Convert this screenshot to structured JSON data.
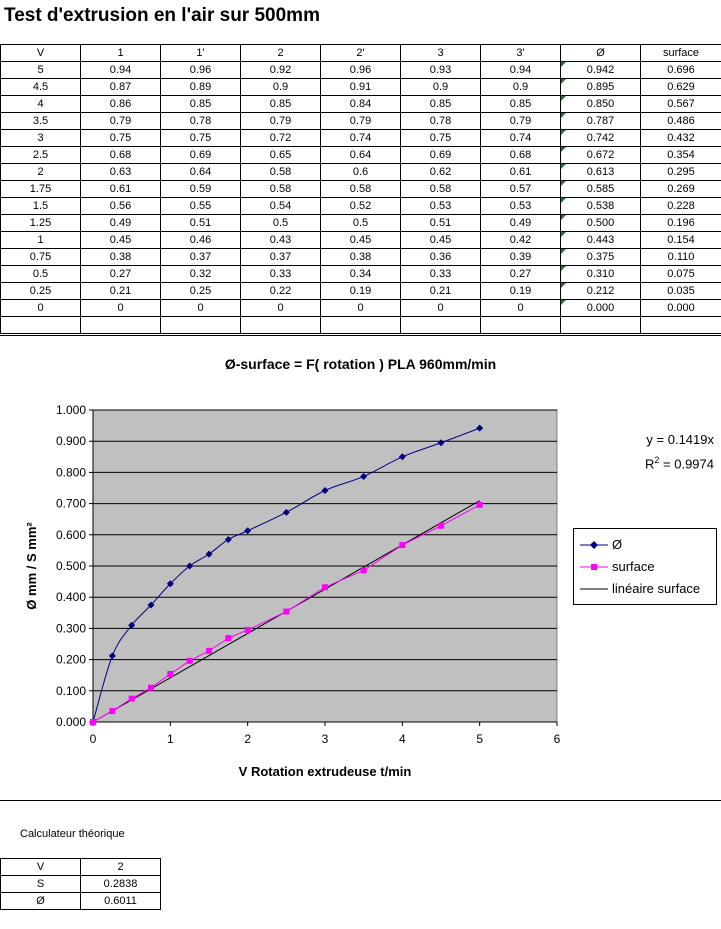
{
  "title": "Test d'extrusion en l'air sur 500mm",
  "table": {
    "headers": [
      "V",
      "1",
      "1'",
      "2",
      "2'",
      "3",
      "3'",
      "Ø",
      "surface"
    ],
    "rows": [
      [
        "5",
        "0.94",
        "0.96",
        "0.92",
        "0.96",
        "0.93",
        "0.94",
        "0.942",
        "0.696"
      ],
      [
        "4.5",
        "0.87",
        "0.89",
        "0.9",
        "0.91",
        "0.9",
        "0.9",
        "0.895",
        "0.629"
      ],
      [
        "4",
        "0.86",
        "0.85",
        "0.85",
        "0.84",
        "0.85",
        "0.85",
        "0.850",
        "0.567"
      ],
      [
        "3.5",
        "0.79",
        "0.78",
        "0.79",
        "0.79",
        "0.78",
        "0.79",
        "0.787",
        "0.486"
      ],
      [
        "3",
        "0.75",
        "0.75",
        "0.72",
        "0.74",
        "0.75",
        "0.74",
        "0.742",
        "0.432"
      ],
      [
        "2.5",
        "0.68",
        "0.69",
        "0.65",
        "0.64",
        "0.69",
        "0.68",
        "0.672",
        "0.354"
      ],
      [
        "2",
        "0.63",
        "0.64",
        "0.58",
        "0.6",
        "0.62",
        "0.61",
        "0.613",
        "0.295"
      ],
      [
        "1.75",
        "0.61",
        "0.59",
        "0.58",
        "0.58",
        "0.58",
        "0.57",
        "0.585",
        "0.269"
      ],
      [
        "1.5",
        "0.56",
        "0.55",
        "0.54",
        "0.52",
        "0.53",
        "0.53",
        "0.538",
        "0.228"
      ],
      [
        "1.25",
        "0.49",
        "0.51",
        "0.5",
        "0.5",
        "0.51",
        "0.49",
        "0.500",
        "0.196"
      ],
      [
        "1",
        "0.45",
        "0.46",
        "0.43",
        "0.45",
        "0.45",
        "0.42",
        "0.443",
        "0.154"
      ],
      [
        "0.75",
        "0.38",
        "0.37",
        "0.37",
        "0.38",
        "0.36",
        "0.39",
        "0.375",
        "0.110"
      ],
      [
        "0.5",
        "0.27",
        "0.32",
        "0.33",
        "0.34",
        "0.33",
        "0.27",
        "0.310",
        "0.075"
      ],
      [
        "0.25",
        "0.21",
        "0.25",
        "0.22",
        "0.19",
        "0.21",
        "0.19",
        "0.212",
        "0.035"
      ],
      [
        "0",
        "0",
        "0",
        "0",
        "0",
        "0",
        "0",
        "0.000",
        "0.000"
      ]
    ]
  },
  "chart_data": {
    "type": "scatter",
    "title": "Ø-surface = F( rotation ) PLA 960mm/min",
    "xlabel": "V Rotation extrudeuse t/min",
    "ylabel": "Ø mm / S mm²",
    "xlim": [
      0,
      6
    ],
    "ylim": [
      0,
      1.0
    ],
    "x_ticks": [
      "0",
      "1",
      "2",
      "3",
      "4",
      "5",
      "6"
    ],
    "y_ticks": [
      "0.000",
      "0.100",
      "0.200",
      "0.300",
      "0.400",
      "0.500",
      "0.600",
      "0.700",
      "0.800",
      "0.900",
      "1.000"
    ],
    "grid": "horizontal",
    "plot_background": "#c0c0c0",
    "legend_position": "right",
    "series": [
      {
        "name": "Ø",
        "color": "#000080",
        "marker": "diamond",
        "line": "smooth",
        "x": [
          0,
          0.25,
          0.5,
          0.75,
          1,
          1.25,
          1.5,
          1.75,
          2,
          2.5,
          3,
          3.5,
          4,
          4.5,
          5
        ],
        "y": [
          0.0,
          0.212,
          0.31,
          0.375,
          0.443,
          0.5,
          0.538,
          0.585,
          0.613,
          0.672,
          0.742,
          0.787,
          0.85,
          0.895,
          0.942
        ]
      },
      {
        "name": "surface",
        "color": "#ff00ff",
        "marker": "square",
        "line": "straight",
        "x": [
          0,
          0.25,
          0.5,
          0.75,
          1,
          1.25,
          1.5,
          1.75,
          2,
          2.5,
          3,
          3.5,
          4,
          4.5,
          5
        ],
        "y": [
          0.0,
          0.035,
          0.075,
          0.11,
          0.154,
          0.196,
          0.228,
          0.269,
          0.295,
          0.354,
          0.432,
          0.486,
          0.567,
          0.629,
          0.696
        ]
      },
      {
        "name": "linéaire surface",
        "color": "#000000",
        "marker": "none",
        "line": "trend",
        "slope": 0.1419,
        "x_range": [
          0,
          5
        ]
      }
    ],
    "equation": "y = 0.1419x",
    "r_squared_label": "R",
    "r_squared_sup": "2",
    "r_squared_value": " = 0.9974"
  },
  "calculator": {
    "label": "Calculateur théorique",
    "rows": [
      [
        "V",
        "2"
      ],
      [
        "S",
        "0.2838"
      ],
      [
        "Ø",
        "0.6011"
      ]
    ]
  }
}
